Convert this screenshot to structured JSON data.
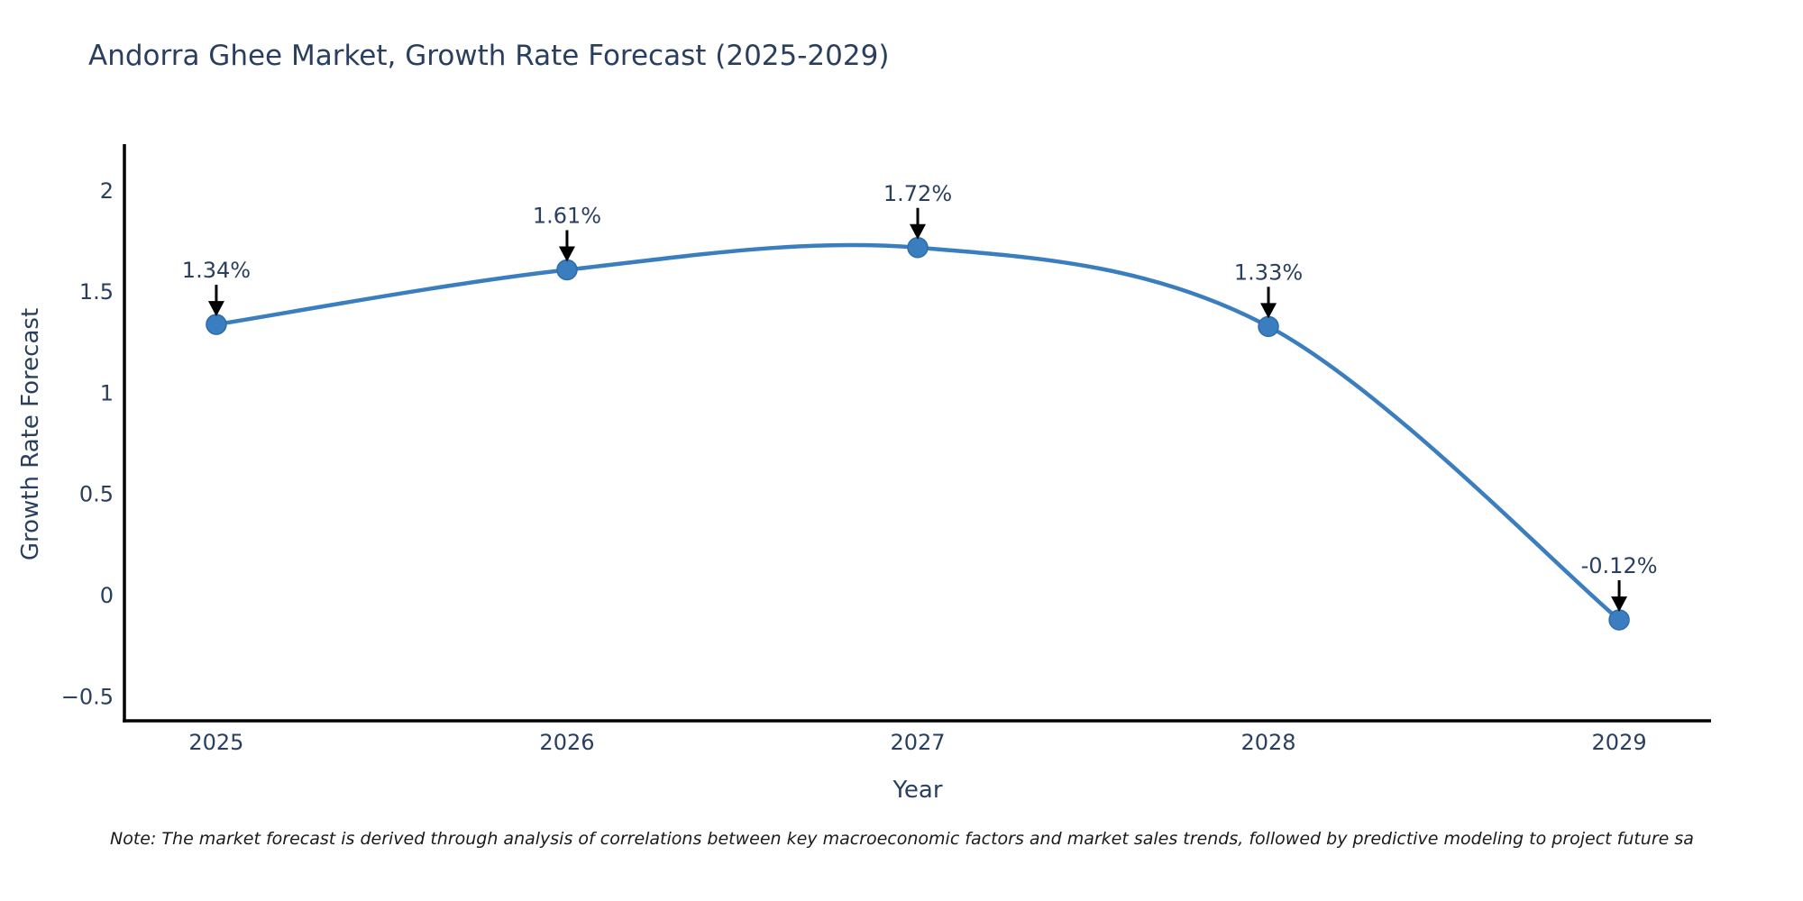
{
  "page": {
    "background": "#ffffff"
  },
  "header": {
    "title": "Andorra Ghee Market, Growth Rate Forecast (2025-2029)"
  },
  "footer": {
    "note": "Note: The market forecast is derived through analysis of correlations between key macroeconomic factors and market sales trends, followed by predictive modeling to project future sa"
  },
  "chart_data": {
    "type": "line",
    "title": "Andorra Ghee Market, Growth Rate Forecast (2025-2029)",
    "xlabel": "Year",
    "ylabel": "Growth Rate Forecast",
    "x": [
      2025,
      2026,
      2027,
      2028,
      2029
    ],
    "y": [
      1.34,
      1.61,
      1.72,
      1.33,
      -0.12
    ],
    "series": [
      {
        "name": "Growth Rate Forecast",
        "values": [
          1.34,
          1.61,
          1.72,
          1.33,
          -0.12
        ]
      }
    ],
    "point_labels": [
      "1.34%",
      "1.61%",
      "1.72%",
      "1.33%",
      "-0.12%"
    ],
    "x_tick_labels": [
      "2025",
      "2026",
      "2027",
      "2028",
      "2029"
    ],
    "y_ticks": [
      {
        "value": 2,
        "label": "2"
      },
      {
        "value": 1.5,
        "label": "1.5"
      },
      {
        "value": 1,
        "label": "1"
      },
      {
        "value": 0.5,
        "label": "0.5"
      },
      {
        "value": 0,
        "label": "0"
      },
      {
        "value": -0.5,
        "label": "−0.5"
      }
    ],
    "xlim": [
      2024.738,
      2029.262
    ],
    "ylim": [
      -0.619,
      2.231
    ],
    "line_shape": "spline",
    "grid": false,
    "legend_position": "none",
    "annotation_arrows": true,
    "colors": {
      "line": "#3a7ebf",
      "marker_fill": "#3a7ebf",
      "marker_edge": "#2f6da8",
      "axis_line": "#000000",
      "tick_text": "#2a3f5f",
      "annotation_text": "#2a3f5f",
      "arrow": "#000000"
    }
  }
}
